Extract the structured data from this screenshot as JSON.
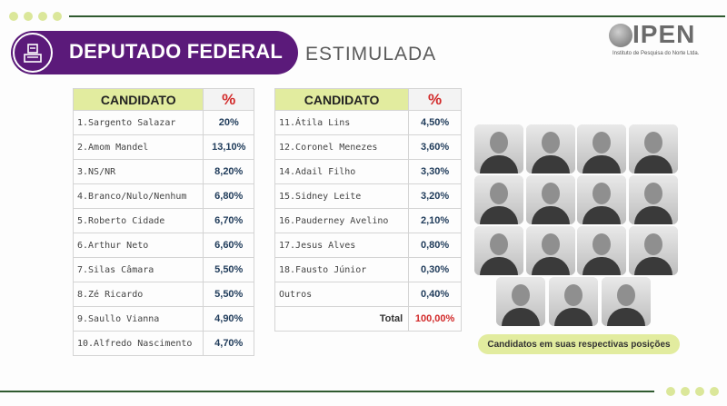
{
  "header": {
    "title": "DEPUTADO FEDERAL",
    "subtitle": "ESTIMULADA"
  },
  "logo": {
    "name": "IPEN",
    "tagline": "Instituto de Pesquisa do Norte Ltda."
  },
  "table_left": {
    "col_candidate": "CANDIDATO",
    "col_percent": "%",
    "rows": [
      {
        "name": "1.Sargento Salazar",
        "pct": "20%"
      },
      {
        "name": "2.Amom Mandel",
        "pct": "13,10%"
      },
      {
        "name": "3.NS/NR",
        "pct": "8,20%"
      },
      {
        "name": "4.Branco/Nulo/Nenhum",
        "pct": "6,80%"
      },
      {
        "name": "5.Roberto Cidade",
        "pct": "6,70%"
      },
      {
        "name": "6.Arthur Neto",
        "pct": "6,60%"
      },
      {
        "name": "7.Silas Câmara",
        "pct": "5,50%"
      },
      {
        "name": "8.Zé Ricardo",
        "pct": "5,50%"
      },
      {
        "name": "9.Saullo Vianna",
        "pct": "4,90%"
      },
      {
        "name": "10.Alfredo Nascimento",
        "pct": "4,70%"
      }
    ]
  },
  "table_right": {
    "col_candidate": "CANDIDATO",
    "col_percent": "%",
    "rows": [
      {
        "name": "11.Átila Lins",
        "pct": "4,50%"
      },
      {
        "name": "12.Coronel Menezes",
        "pct": "3,60%"
      },
      {
        "name": "14.Adail Filho",
        "pct": "3,30%"
      },
      {
        "name": "15.Sidney Leite",
        "pct": "3,20%"
      },
      {
        "name": "16.Pauderney Avelino",
        "pct": "2,10%"
      },
      {
        "name": "17.Jesus Alves",
        "pct": "0,80%"
      },
      {
        "name": "18.Fausto Júnior",
        "pct": "0,30%"
      },
      {
        "name": "Outros",
        "pct": "0,40%"
      }
    ],
    "total_label": "Total",
    "total_value": "100,00%"
  },
  "photos_caption": "Candidatos em suas respectivas posições",
  "colors": {
    "purple": "#5b1a7a",
    "lime": "#e2ec9f",
    "red": "#d22a2a",
    "navy": "#1f3b5a"
  }
}
